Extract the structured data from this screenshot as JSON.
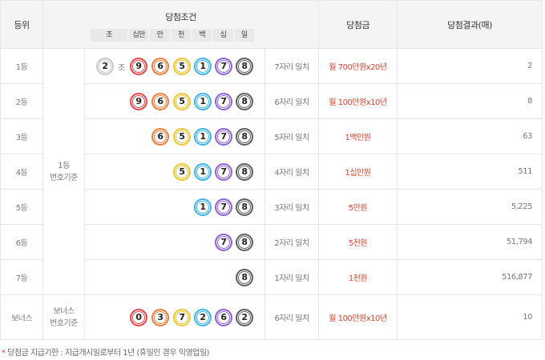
{
  "header": {
    "rank": "등위",
    "condition": "당첨조건",
    "prize": "당첨금",
    "result": "당첨결과(매)",
    "digits": [
      "조",
      "십만",
      "만",
      "천",
      "백",
      "십",
      "일"
    ]
  },
  "colors": {
    "jo": "#c8c8c8",
    "d1": "#e8474b",
    "d2": "#f07d3e",
    "d3": "#f5c433",
    "d4": "#3cb4f0",
    "d5": "#8e62d6",
    "d6": "#5e5e5e",
    "prize": "#d9402b"
  },
  "basis_main": "1등\n번호기준",
  "jo_label": "조",
  "rows": [
    {
      "rank": "1등",
      "jo": "2",
      "digits": [
        "9",
        "6",
        "5",
        "1",
        "7",
        "8"
      ],
      "match": "7자리 일치",
      "prize": "월 700만원x20년",
      "count": "2"
    },
    {
      "rank": "2등",
      "digits": [
        "9",
        "6",
        "5",
        "1",
        "7",
        "8"
      ],
      "match": "6자리 일치",
      "prize": "월 100만원x10년",
      "count": "8"
    },
    {
      "rank": "3등",
      "digits": [
        "6",
        "5",
        "1",
        "7",
        "8"
      ],
      "match": "5자리 일치",
      "prize": "1백만원",
      "count": "63"
    },
    {
      "rank": "4등",
      "digits": [
        "5",
        "1",
        "7",
        "8"
      ],
      "match": "4자리 일치",
      "prize": "1십만원",
      "count": "511"
    },
    {
      "rank": "5등",
      "digits": [
        "1",
        "7",
        "8"
      ],
      "match": "3자리 일치",
      "prize": "5만원",
      "count": "5,225"
    },
    {
      "rank": "6등",
      "digits": [
        "7",
        "8"
      ],
      "match": "2자리 일치",
      "prize": "5천원",
      "count": "51,794"
    },
    {
      "rank": "7등",
      "digits": [
        "8"
      ],
      "match": "1자리 일치",
      "prize": "1천원",
      "count": "516,877"
    }
  ],
  "bonus": {
    "rank": "보너스",
    "basis": "보너스\n번호기준",
    "digits": [
      "0",
      "3",
      "7",
      "2",
      "6",
      "2"
    ],
    "match": "6자리 일치",
    "prize": "월 100만원x10년",
    "count": "10"
  },
  "note": {
    "mark": "*",
    "text": " 당첨금 지급기한 : 지급개시일로부터 1년 (휴일인 경우 익영업일)"
  }
}
